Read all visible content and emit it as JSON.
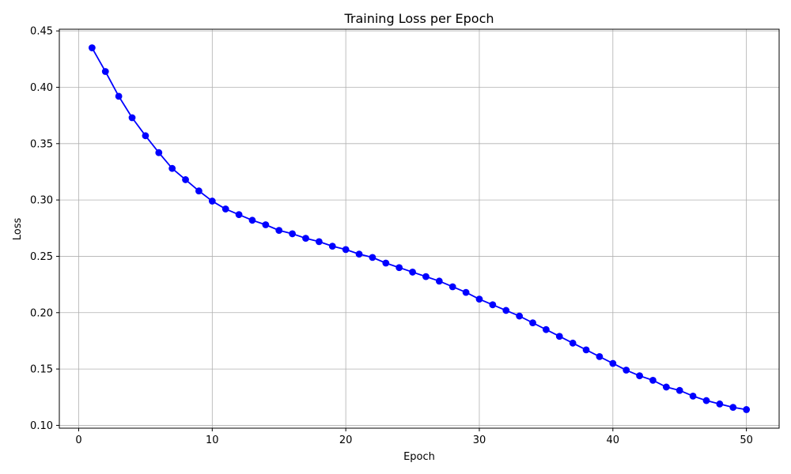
{
  "chart_data": {
    "type": "line",
    "title": "Training Loss per Epoch",
    "xlabel": "Epoch",
    "ylabel": "Loss",
    "xlim": [
      -1.45,
      52.45
    ],
    "ylim": [
      0.0975,
      0.4515
    ],
    "xticks": [
      0,
      10,
      20,
      30,
      40,
      50
    ],
    "xtick_labels": [
      "0",
      "10",
      "20",
      "30",
      "40",
      "50"
    ],
    "yticks": [
      0.1,
      0.15,
      0.2,
      0.25,
      0.3,
      0.35,
      0.4,
      0.45
    ],
    "ytick_labels": [
      "0.10",
      "0.15",
      "0.20",
      "0.25",
      "0.30",
      "0.35",
      "0.40",
      "0.45"
    ],
    "grid": true,
    "line_color": "#0000ff",
    "marker": "circle",
    "series": [
      {
        "x": [
          1,
          2,
          3,
          4,
          5,
          6,
          7,
          8,
          9,
          10,
          11,
          12,
          13,
          14,
          15,
          16,
          17,
          18,
          19,
          20,
          21,
          22,
          23,
          24,
          25,
          26,
          27,
          28,
          29,
          30,
          31,
          32,
          33,
          34,
          35,
          36,
          37,
          38,
          39,
          40,
          41,
          42,
          43,
          44,
          45,
          46,
          47,
          48,
          49,
          50
        ],
        "values": [
          0.435,
          0.414,
          0.392,
          0.373,
          0.357,
          0.342,
          0.328,
          0.318,
          0.308,
          0.299,
          0.292,
          0.287,
          0.282,
          0.278,
          0.273,
          0.27,
          0.266,
          0.263,
          0.259,
          0.256,
          0.252,
          0.249,
          0.244,
          0.24,
          0.236,
          0.232,
          0.228,
          0.223,
          0.218,
          0.212,
          0.207,
          0.202,
          0.197,
          0.191,
          0.185,
          0.179,
          0.173,
          0.167,
          0.161,
          0.155,
          0.149,
          0.144,
          0.14,
          0.134,
          0.131,
          0.126,
          0.122,
          0.119,
          0.116,
          0.114
        ]
      }
    ]
  }
}
